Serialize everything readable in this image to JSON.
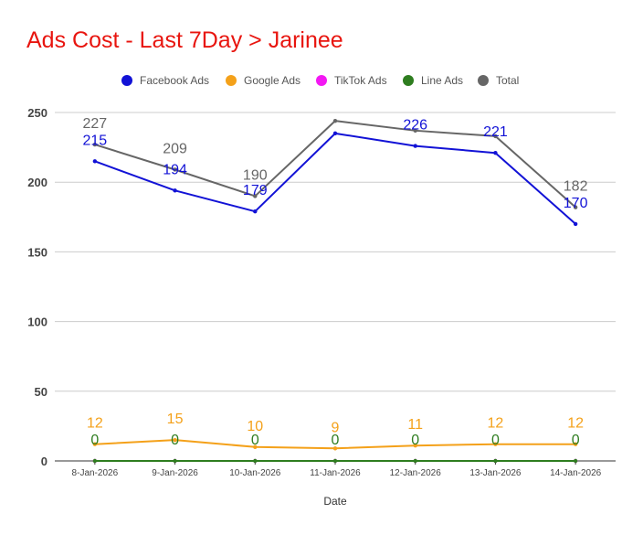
{
  "chart_data": {
    "type": "line",
    "title": "Ads Cost - Last 7Day > Jarinee",
    "xlabel": "Date",
    "ylabel": "",
    "ylim": [
      0,
      250
    ],
    "yticks": [
      0,
      50,
      100,
      150,
      200,
      250
    ],
    "grid": true,
    "legend_position": "top",
    "categories": [
      "8-Jan-2026",
      "9-Jan-2026",
      "10-Jan-2026",
      "11-Jan-2026",
      "12-Jan-2026",
      "13-Jan-2026",
      "14-Jan-2026"
    ],
    "series": [
      {
        "name": "Facebook Ads",
        "color": "#1212d6",
        "values": [
          215,
          194,
          179,
          235,
          226,
          221,
          170
        ],
        "labels": [
          "215",
          "194",
          "179",
          "",
          "226",
          "221",
          "170"
        ]
      },
      {
        "name": "Google Ads",
        "color": "#f4a11a",
        "values": [
          12,
          15,
          10,
          9,
          11,
          12,
          12
        ],
        "labels": [
          "12",
          "15",
          "10",
          "9",
          "11",
          "12",
          "12"
        ]
      },
      {
        "name": "TikTok Ads",
        "color": "#f318f3",
        "values": [
          0,
          0,
          0,
          0,
          0,
          0,
          0
        ],
        "labels": [
          "",
          "",
          "",
          "",
          "",
          "",
          ""
        ]
      },
      {
        "name": "Line Ads",
        "color": "#2e7d1f",
        "values": [
          0,
          0,
          0,
          0,
          0,
          0,
          0
        ],
        "labels": [
          "0",
          "0",
          "0",
          "0",
          "0",
          "0",
          "0"
        ]
      },
      {
        "name": "Total",
        "color": "#666666",
        "values": [
          227,
          209,
          190,
          244,
          237,
          233,
          182
        ],
        "labels": [
          "227",
          "209",
          "190",
          "",
          "",
          "",
          "182"
        ]
      }
    ]
  }
}
